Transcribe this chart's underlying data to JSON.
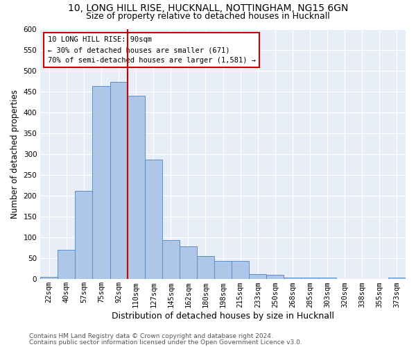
{
  "title_line1": "10, LONG HILL RISE, HUCKNALL, NOTTINGHAM, NG15 6GN",
  "title_line2": "Size of property relative to detached houses in Hucknall",
  "xlabel": "Distribution of detached houses by size in Hucknall",
  "ylabel": "Number of detached properties",
  "categories": [
    "22sqm",
    "40sqm",
    "57sqm",
    "75sqm",
    "92sqm",
    "110sqm",
    "127sqm",
    "145sqm",
    "162sqm",
    "180sqm",
    "198sqm",
    "215sqm",
    "233sqm",
    "250sqm",
    "268sqm",
    "285sqm",
    "303sqm",
    "320sqm",
    "338sqm",
    "355sqm",
    "373sqm"
  ],
  "values": [
    5,
    70,
    212,
    463,
    472,
    440,
    287,
    94,
    79,
    55,
    44,
    43,
    12,
    10,
    4,
    4,
    4,
    0,
    0,
    0,
    4
  ],
  "bar_color": "#aec6e8",
  "bar_edge_color": "#5b8fc9",
  "vline_color": "#cc0000",
  "annotation_text": "10 LONG HILL RISE: 90sqm\n← 30% of detached houses are smaller (671)\n70% of semi-detached houses are larger (1,581) →",
  "annotation_box_color": "#ffffff",
  "annotation_box_edge": "#cc0000",
  "ylim": [
    0,
    600
  ],
  "yticks": [
    0,
    50,
    100,
    150,
    200,
    250,
    300,
    350,
    400,
    450,
    500,
    550,
    600
  ],
  "background_color": "#e8eef8",
  "footer_line1": "Contains HM Land Registry data © Crown copyright and database right 2024.",
  "footer_line2": "Contains public sector information licensed under the Open Government Licence v3.0.",
  "title_fontsize": 10,
  "subtitle_fontsize": 9,
  "xlabel_fontsize": 9,
  "ylabel_fontsize": 8.5,
  "tick_fontsize": 7.5,
  "annotation_fontsize": 7.5,
  "footer_fontsize": 6.5,
  "vline_bin_index": 4
}
